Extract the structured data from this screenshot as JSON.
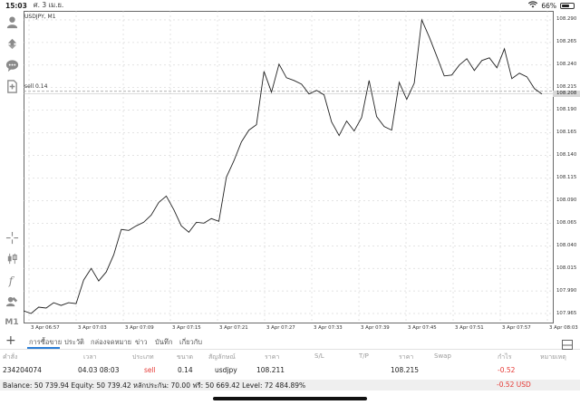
{
  "status_bar": {
    "time": "15:03",
    "date": "ศ. 3 เม.ย.",
    "battery_text": "66%",
    "battery_level": 0.66
  },
  "toolbar": {
    "icons": [
      "trader-icon",
      "trade-icon",
      "chat-icon",
      "new-order-icon",
      "crosshair-icon",
      "chart-type-icon",
      "indicators-icon",
      "objects-icon"
    ],
    "timeframe": "M1"
  },
  "chart": {
    "symbol_label": "USDJPY, M1",
    "sell_line_label": "sell 0.14",
    "current_price_label": "108.208",
    "colors": {
      "line": "#222222",
      "grid": "#c8c8c8",
      "current_price_bg": "#d8d8d8"
    }
  },
  "chart_data": {
    "type": "line",
    "title": "USDJPY, M1",
    "xlabel": "",
    "ylabel": "",
    "ylim": [
      107.955,
      108.3
    ],
    "y_ticks": [
      "108.290",
      "108.265",
      "108.240",
      "108.215",
      "108.190",
      "108.165",
      "108.140",
      "108.115",
      "108.090",
      "108.065",
      "108.040",
      "108.015",
      "107.990",
      "107.965"
    ],
    "x_ticks": [
      "3 Apr 06:57",
      "3 Apr 07:03",
      "3 Apr 07:09",
      "3 Apr 07:15",
      "3 Apr 07:21",
      "3 Apr 07:27",
      "3 Apr 07:33",
      "3 Apr 07:39",
      "3 Apr 07:45",
      "3 Apr 07:51",
      "3 Apr 07:57",
      "3 Apr 08:03"
    ],
    "sell_level": 108.211,
    "current_price": 108.208,
    "grid": true,
    "series": [
      {
        "values": [
          107.968,
          107.965,
          107.972,
          107.971,
          107.977,
          107.974,
          107.977,
          107.976,
          108.002,
          108.015,
          108.001,
          108.011,
          108.03,
          108.058,
          108.057,
          108.062,
          108.066,
          108.074,
          108.088,
          108.095,
          108.08,
          108.062,
          108.055,
          108.066,
          108.065,
          108.07,
          108.067,
          108.116,
          108.134,
          108.155,
          108.168,
          108.174,
          108.233,
          108.21,
          108.241,
          108.226,
          108.223,
          108.219,
          108.208,
          108.212,
          108.207,
          108.177,
          108.162,
          108.178,
          108.167,
          108.182,
          108.223,
          108.183,
          108.172,
          108.168,
          108.221,
          108.202,
          108.22,
          108.29,
          108.271,
          108.25,
          108.228,
          108.229,
          108.24,
          108.247,
          108.234,
          108.245,
          108.248,
          108.237,
          108.258,
          108.225,
          108.231,
          108.227,
          108.214,
          108.208
        ]
      }
    ]
  },
  "terminal": {
    "tabs": [
      "การซื้อขาย",
      "ประวัติ",
      "กล่องจดหมาย",
      "ข่าว",
      "บันทึก",
      "เกี่ยวกับ"
    ],
    "active_tab": 0,
    "headers": [
      "คำสั่ง",
      "เวลา",
      "ประเภท",
      "ขนาด",
      "สัญลักษณ์",
      "ราคา",
      "S/L",
      "T/P",
      "ราคา",
      "Swap",
      "กำไร",
      "หมายเหตุ"
    ],
    "order": {
      "ticket": "234204074",
      "time": "04.03 08:03",
      "type": "sell",
      "size": "0.14",
      "symbol": "usdjpy",
      "open_price": "108.211",
      "current_price": "108.215",
      "profit": "-0.52"
    },
    "balance_text": "Balance: 50 739.94 Equity: 50 739.42 หลักประกัน: 70.00 ฟรี: 50 669.42 Level: 72 484.89%",
    "total_profit": "-0.52  USD"
  }
}
